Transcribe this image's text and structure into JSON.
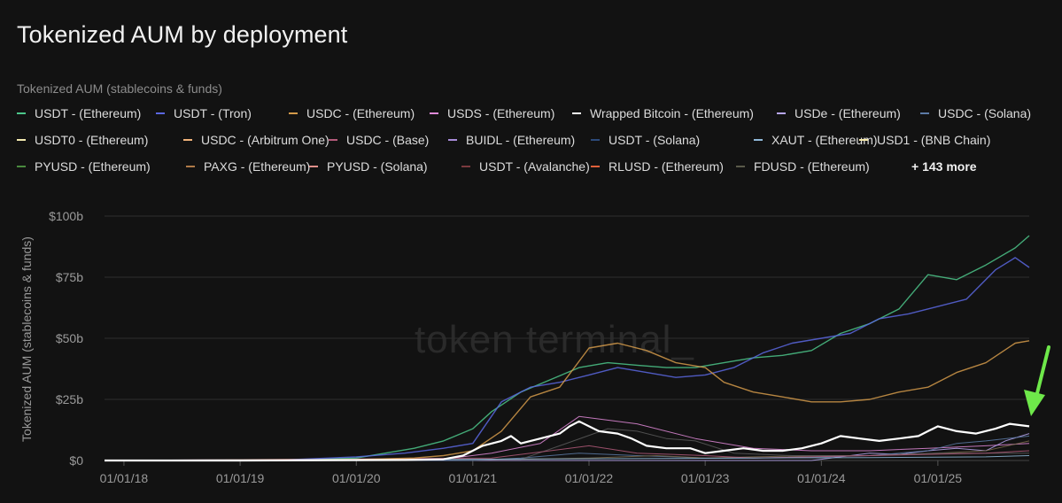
{
  "page": {
    "title": "Tokenized AUM by deployment",
    "subtitle": "Tokenized AUM (stablecoins & funds)",
    "watermark": "token terminal_"
  },
  "legend": {
    "items": [
      {
        "label": "USDT - (Ethereum)",
        "color": "#4cc68a"
      },
      {
        "label": "USDT - (Tron)",
        "color": "#5b67e0"
      },
      {
        "label": "USDC - (Ethereum)",
        "color": "#d39a4a"
      },
      {
        "label": "USDS - (Ethereum)",
        "color": "#e08ad8"
      },
      {
        "label": "Wrapped Bitcoin - (Ethereum)",
        "color": "#ffffff"
      },
      {
        "label": "USDe - (Ethereum)",
        "color": "#b7a6f0"
      },
      {
        "label": "USDC - (Solana)",
        "color": "#5c7aa6"
      },
      {
        "label": "USDT0 - (Ethereum)",
        "color": "#f3e9b0"
      },
      {
        "label": "USDC - (Arbitrum One)",
        "color": "#f0b27a"
      },
      {
        "label": "USDC - (Base)",
        "color": "#b35a7a"
      },
      {
        "label": "BUIDL - (Ethereum)",
        "color": "#a78bd8"
      },
      {
        "label": "USDT - (Solana)",
        "color": "#2c4a7a"
      },
      {
        "label": "XAUT - (Ethereum)",
        "color": "#8fb8d8"
      },
      {
        "label": "USD1 - (BNB Chain)",
        "color": "#f3e6a8"
      },
      {
        "label": "PYUSD - (Ethereum)",
        "color": "#4a8a3e"
      },
      {
        "label": "PAXG - (Ethereum)",
        "color": "#b07a48"
      },
      {
        "label": "PYUSD - (Solana)",
        "color": "#e0908a"
      },
      {
        "label": "USDT - (Avalanche)",
        "color": "#7a3a3e"
      },
      {
        "label": "RLUSD - (Ethereum)",
        "color": "#e0603a"
      },
      {
        "label": "FDUSD - (Ethereum)",
        "color": "#5a5a4a"
      }
    ],
    "more_label": "+ 143 more"
  },
  "chart_data": {
    "type": "line",
    "title": "Tokenized AUM by deployment",
    "ylabel": "Tokenized AUM (stablecoins & funds)",
    "xlabel": "",
    "x_ticks": [
      "01/01/18",
      "01/01/19",
      "01/01/20",
      "01/01/21",
      "01/01/22",
      "01/01/23",
      "01/01/24",
      "01/01/25"
    ],
    "y_ticks": [
      "$0",
      "$25b",
      "$50b",
      "$75b",
      "$100b"
    ],
    "ylim": [
      0,
      100
    ],
    "xlim": [
      "2017-11-01",
      "2025-10-15"
    ],
    "grid": "horizontal",
    "legend_position": "top",
    "annotation": {
      "type": "arrow",
      "color": "#6ee84a",
      "target_series": "Wrapped Bitcoin - (Ethereum)"
    },
    "series": [
      {
        "name": "USDT - (Ethereum)",
        "color": "#4cc68a",
        "width": 1.4,
        "x": [
          "2017-11-01",
          "2019-06-01",
          "2020-01-01",
          "2020-04-01",
          "2020-07-01",
          "2020-10-01",
          "2021-01-01",
          "2021-03-01",
          "2021-06-01",
          "2021-09-01",
          "2021-12-01",
          "2022-03-01",
          "2022-06-01",
          "2022-09-01",
          "2022-12-01",
          "2023-03-01",
          "2023-06-01",
          "2023-09-01",
          "2023-12-01",
          "2024-03-01",
          "2024-06-01",
          "2024-09-01",
          "2024-12-01",
          "2025-03-01",
          "2025-06-01",
          "2025-09-01",
          "2025-10-15"
        ],
        "y": [
          0,
          0.2,
          1,
          3,
          5,
          8,
          13,
          20,
          28,
          33,
          38,
          40,
          39,
          38,
          38,
          40,
          42,
          43,
          45,
          52,
          56,
          62,
          76,
          74,
          80,
          87,
          92
        ]
      },
      {
        "name": "USDT - (Tron)",
        "color": "#5b67e0",
        "width": 1.4,
        "x": [
          "2017-11-01",
          "2019-06-01",
          "2020-01-01",
          "2020-06-01",
          "2020-10-01",
          "2021-01-01",
          "2021-04-01",
          "2021-07-01",
          "2021-10-01",
          "2022-01-01",
          "2022-04-01",
          "2022-07-01",
          "2022-10-01",
          "2023-01-01",
          "2023-04-01",
          "2023-07-01",
          "2023-10-01",
          "2024-01-01",
          "2024-04-01",
          "2024-07-01",
          "2024-10-01",
          "2025-01-01",
          "2025-04-01",
          "2025-07-01",
          "2025-09-01",
          "2025-10-15"
        ],
        "y": [
          0,
          0.3,
          1.5,
          3,
          5,
          7,
          24,
          30,
          32,
          35,
          38,
          36,
          34,
          35,
          38,
          44,
          48,
          50,
          52,
          58,
          60,
          63,
          66,
          78,
          83,
          79
        ]
      },
      {
        "name": "USDC - (Ethereum)",
        "color": "#d39a4a",
        "width": 1.4,
        "x": [
          "2017-11-01",
          "2020-01-01",
          "2020-07-01",
          "2020-10-01",
          "2021-01-01",
          "2021-04-01",
          "2021-07-01",
          "2021-10-01",
          "2022-01-01",
          "2022-04-01",
          "2022-07-01",
          "2022-10-01",
          "2023-01-01",
          "2023-03-01",
          "2023-06-01",
          "2023-09-01",
          "2023-12-01",
          "2024-03-01",
          "2024-06-01",
          "2024-09-01",
          "2024-12-01",
          "2025-03-01",
          "2025-06-01",
          "2025-09-01",
          "2025-10-15"
        ],
        "y": [
          0,
          0.4,
          1,
          2,
          4,
          12,
          26,
          30,
          46,
          48,
          45,
          40,
          38,
          32,
          28,
          26,
          24,
          24,
          25,
          28,
          30,
          36,
          40,
          48,
          49
        ]
      },
      {
        "name": "USDS - (Ethereum)",
        "color": "#e08ad8",
        "width": 1,
        "x": [
          "2017-11-01",
          "2020-01-01",
          "2020-10-01",
          "2021-03-01",
          "2021-08-01",
          "2021-12-01",
          "2022-06-01",
          "2022-12-01",
          "2023-06-01",
          "2023-12-01",
          "2024-06-01",
          "2024-12-01",
          "2025-06-01",
          "2025-10-15"
        ],
        "y": [
          0,
          0,
          0.5,
          3,
          7,
          18,
          15,
          9,
          5,
          4,
          4,
          5,
          6,
          7
        ]
      },
      {
        "name": "Wrapped Bitcoin - (Ethereum)",
        "color": "#ffffff",
        "width": 2.2,
        "x": [
          "2017-11-01",
          "2019-01-01",
          "2020-06-01",
          "2020-10-01",
          "2020-12-01",
          "2021-02-01",
          "2021-04-01",
          "2021-05-01",
          "2021-06-01",
          "2021-08-01",
          "2021-10-01",
          "2021-11-01",
          "2021-12-01",
          "2022-02-01",
          "2022-04-01",
          "2022-05-15",
          "2022-07-01",
          "2022-09-01",
          "2022-11-15",
          "2023-01-01",
          "2023-03-01",
          "2023-05-01",
          "2023-07-01",
          "2023-09-01",
          "2023-11-01",
          "2024-01-01",
          "2024-03-01",
          "2024-05-01",
          "2024-07-01",
          "2024-09-01",
          "2024-11-01",
          "2024-12-01",
          "2025-01-01",
          "2025-03-01",
          "2025-05-01",
          "2025-07-01",
          "2025-08-15",
          "2025-10-15"
        ],
        "y": [
          0,
          0,
          0.2,
          0.5,
          2,
          6,
          8,
          10,
          7,
          9,
          11,
          14,
          16,
          12,
          11,
          9,
          6,
          5,
          5,
          3,
          4,
          5,
          4,
          4,
          5,
          7,
          10,
          9,
          8,
          9,
          10,
          12,
          14,
          12,
          11,
          13,
          15,
          14
        ]
      },
      {
        "name": "USDe - (Ethereum)",
        "color": "#b7a6f0",
        "width": 1,
        "x": [
          "2017-11-01",
          "2023-12-01",
          "2024-03-01",
          "2024-06-01",
          "2024-09-01",
          "2024-12-01",
          "2025-03-01",
          "2025-06-01",
          "2025-08-01",
          "2025-10-15"
        ],
        "y": [
          0,
          0,
          1.5,
          3,
          2.5,
          4,
          5,
          4,
          8,
          11
        ]
      },
      {
        "name": "USDC - (Solana)",
        "color": "#5c7aa6",
        "width": 1,
        "x": [
          "2017-11-01",
          "2021-01-01",
          "2021-06-01",
          "2021-12-01",
          "2022-06-01",
          "2023-01-01",
          "2023-06-01",
          "2024-01-01",
          "2024-06-01",
          "2024-12-01",
          "2025-03-01",
          "2025-06-01",
          "2025-10-15"
        ],
        "y": [
          0,
          0,
          1,
          3,
          2,
          1,
          1,
          1.5,
          2,
          4,
          7,
          8,
          10
        ]
      },
      {
        "name": "FDUSD - (Ethereum)",
        "color": "#7a6a4a",
        "width": 1,
        "x": [
          "2017-11-01",
          "2021-06-01",
          "2022-01-01",
          "2022-08-01",
          "2023-01-01",
          "2023-06-01",
          "2024-01-01",
          "2024-06-01",
          "2025-01-01",
          "2025-06-01",
          "2025-10-15"
        ],
        "y": [
          0,
          0.5,
          1,
          2,
          1,
          1.5,
          2,
          2,
          3,
          4,
          8
        ]
      },
      {
        "name": "PAXG - (Ethereum)",
        "color": "#5a5a5a",
        "width": 1,
        "x": [
          "2017-11-01",
          "2021-06-01",
          "2021-10-01",
          "2022-03-01",
          "2022-06-01",
          "2022-09-01",
          "2022-12-01",
          "2023-04-01",
          "2023-10-01",
          "2024-06-01",
          "2025-01-01",
          "2025-10-15"
        ],
        "y": [
          0,
          0.5,
          6,
          13,
          12,
          9,
          8,
          3,
          2,
          2,
          3,
          3
        ]
      },
      {
        "name": "USDC - (Base)",
        "color": "#b35a7a",
        "width": 1,
        "x": [
          "2017-11-01",
          "2021-03-01",
          "2021-09-01",
          "2022-01-01",
          "2022-06-01",
          "2023-01-01",
          "2023-06-01",
          "2024-06-01",
          "2025-06-01",
          "2025-10-15"
        ],
        "y": [
          0,
          1,
          4,
          6,
          3,
          2,
          1,
          2,
          3,
          4
        ]
      },
      {
        "name": "XAUT - (Ethereum)",
        "color": "#8fb8d8",
        "width": 1,
        "x": [
          "2017-11-01",
          "2020-06-01",
          "2021-06-01",
          "2022-06-01",
          "2023-06-01",
          "2024-06-01",
          "2025-06-01",
          "2025-10-15"
        ],
        "y": [
          0,
          0.3,
          0.6,
          0.8,
          1,
          1.2,
          1.5,
          2
        ]
      }
    ]
  }
}
